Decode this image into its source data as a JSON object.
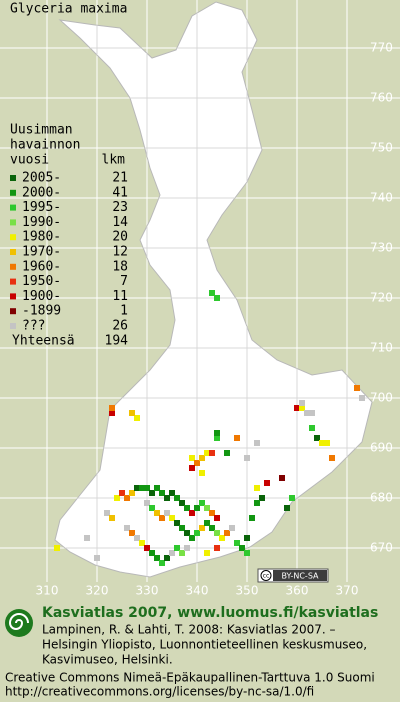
{
  "map": {
    "title": "Glyceria maxima",
    "xticks": [
      310,
      320,
      330,
      340,
      350,
      360,
      370
    ],
    "yticks": [
      670,
      680,
      690,
      700,
      710,
      720,
      730,
      740,
      750,
      760,
      770
    ],
    "legend": {
      "heading": [
        "Uusimman",
        "havainnon",
        "vuosi"
      ],
      "count_heading": "lkm",
      "classes": [
        {
          "label": "2005-",
          "count": 21,
          "color": "#0a640a"
        },
        {
          "label": "2000-",
          "count": 41,
          "color": "#129612"
        },
        {
          "label": "1995-",
          "count": 23,
          "color": "#2ec82e"
        },
        {
          "label": "1990-",
          "count": 14,
          "color": "#78e046"
        },
        {
          "label": "1980-",
          "count": 20,
          "color": "#f0f000"
        },
        {
          "label": "1970-",
          "count": 12,
          "color": "#f0c000"
        },
        {
          "label": "1960-",
          "count": 18,
          "color": "#f07800"
        },
        {
          "label": "1950-",
          "count": 7,
          "color": "#e83010"
        },
        {
          "label": "1900-",
          "count": 11,
          "color": "#c80000"
        },
        {
          "label": "-1899",
          "count": 1,
          "color": "#800000"
        },
        {
          "label": "???",
          "count": 26,
          "color": "#c4c4c4"
        }
      ],
      "total_label": "Yhteensä",
      "total": 194
    },
    "squares": [
      [
        343,
        721,
        2
      ],
      [
        344,
        720,
        2
      ],
      [
        323,
        697,
        8
      ],
      [
        323,
        698,
        6
      ],
      [
        328,
        696,
        4
      ],
      [
        327,
        697,
        5
      ],
      [
        360,
        698,
        8
      ],
      [
        361,
        698,
        4
      ],
      [
        362,
        697,
        10
      ],
      [
        361,
        699,
        10
      ],
      [
        363,
        697,
        10
      ],
      [
        364,
        692,
        0
      ],
      [
        363,
        694,
        2
      ],
      [
        365,
        691,
        4
      ],
      [
        366,
        691,
        4
      ],
      [
        367,
        688,
        6
      ],
      [
        373,
        700,
        10
      ],
      [
        372,
        702,
        6
      ],
      [
        344,
        692,
        2
      ],
      [
        344,
        693,
        1
      ],
      [
        346,
        689,
        1
      ],
      [
        348,
        692,
        6
      ],
      [
        352,
        691,
        10
      ],
      [
        350,
        688,
        10
      ],
      [
        339,
        688,
        4
      ],
      [
        340,
        687,
        6
      ],
      [
        341,
        688,
        5
      ],
      [
        342,
        689,
        4
      ],
      [
        343,
        689,
        7
      ],
      [
        339,
        686,
        8
      ],
      [
        341,
        685,
        4
      ],
      [
        352,
        682,
        4
      ],
      [
        353,
        680,
        0
      ],
      [
        354,
        683,
        8
      ],
      [
        352,
        679,
        1
      ],
      [
        324,
        680,
        4
      ],
      [
        325,
        681,
        7
      ],
      [
        326,
        680,
        6
      ],
      [
        327,
        681,
        5
      ],
      [
        328,
        682,
        0
      ],
      [
        329,
        682,
        1
      ],
      [
        330,
        682,
        1
      ],
      [
        331,
        681,
        0
      ],
      [
        332,
        682,
        1
      ],
      [
        333,
        681,
        1
      ],
      [
        334,
        680,
        0
      ],
      [
        335,
        681,
        0
      ],
      [
        336,
        680,
        1
      ],
      [
        337,
        679,
        0
      ],
      [
        338,
        678,
        1
      ],
      [
        339,
        677,
        8
      ],
      [
        340,
        678,
        1
      ],
      [
        341,
        679,
        2
      ],
      [
        342,
        678,
        3
      ],
      [
        343,
        677,
        6
      ],
      [
        344,
        676,
        8
      ],
      [
        330,
        679,
        10
      ],
      [
        331,
        678,
        2
      ],
      [
        332,
        677,
        5
      ],
      [
        333,
        676,
        6
      ],
      [
        334,
        677,
        10
      ],
      [
        335,
        676,
        4
      ],
      [
        336,
        675,
        0
      ],
      [
        337,
        674,
        1
      ],
      [
        338,
        673,
        0
      ],
      [
        339,
        672,
        1
      ],
      [
        340,
        673,
        2
      ],
      [
        341,
        674,
        5
      ],
      [
        342,
        675,
        1
      ],
      [
        343,
        674,
        1
      ],
      [
        344,
        673,
        3
      ],
      [
        345,
        672,
        4
      ],
      [
        346,
        673,
        6
      ],
      [
        347,
        674,
        10
      ],
      [
        348,
        671,
        2
      ],
      [
        349,
        670,
        1
      ],
      [
        350,
        672,
        0
      ],
      [
        351,
        676,
        1
      ],
      [
        322,
        677,
        10
      ],
      [
        323,
        676,
        5
      ],
      [
        326,
        674,
        10
      ],
      [
        327,
        673,
        6
      ],
      [
        328,
        672,
        10
      ],
      [
        329,
        671,
        4
      ],
      [
        330,
        670,
        8
      ],
      [
        331,
        669,
        1
      ],
      [
        332,
        668,
        1
      ],
      [
        333,
        667,
        2
      ],
      [
        334,
        668,
        0
      ],
      [
        335,
        669,
        10
      ],
      [
        336,
        670,
        2
      ],
      [
        337,
        669,
        3
      ],
      [
        338,
        670,
        10
      ],
      [
        342,
        669,
        4
      ],
      [
        344,
        670,
        7
      ],
      [
        350,
        669,
        2
      ],
      [
        312,
        670,
        4
      ],
      [
        318,
        672,
        10
      ],
      [
        320,
        668,
        10
      ],
      [
        358,
        678,
        0
      ],
      [
        359,
        680,
        2
      ],
      [
        357,
        684,
        9
      ]
    ],
    "license_badge": "BY-NC-SA",
    "footer": {
      "headline": "Kasviatlas 2007, www.luomus.fi/kasviatlas",
      "citation": [
        "Lampinen, R. & Lahti, T. 2008: Kasviatlas 2007. –",
        "Helsingin Yliopisto, Luonnontieteellinen keskusmuseo,",
        "Kasvimuseo, Helsinki."
      ],
      "license": [
        "Creative Commons Nimeä-Epäkaupallinen-Tarttuva 1.0 Suomi",
        "http://creativecommons.org/licenses/by-nc-sa/1.0/fi"
      ]
    }
  }
}
